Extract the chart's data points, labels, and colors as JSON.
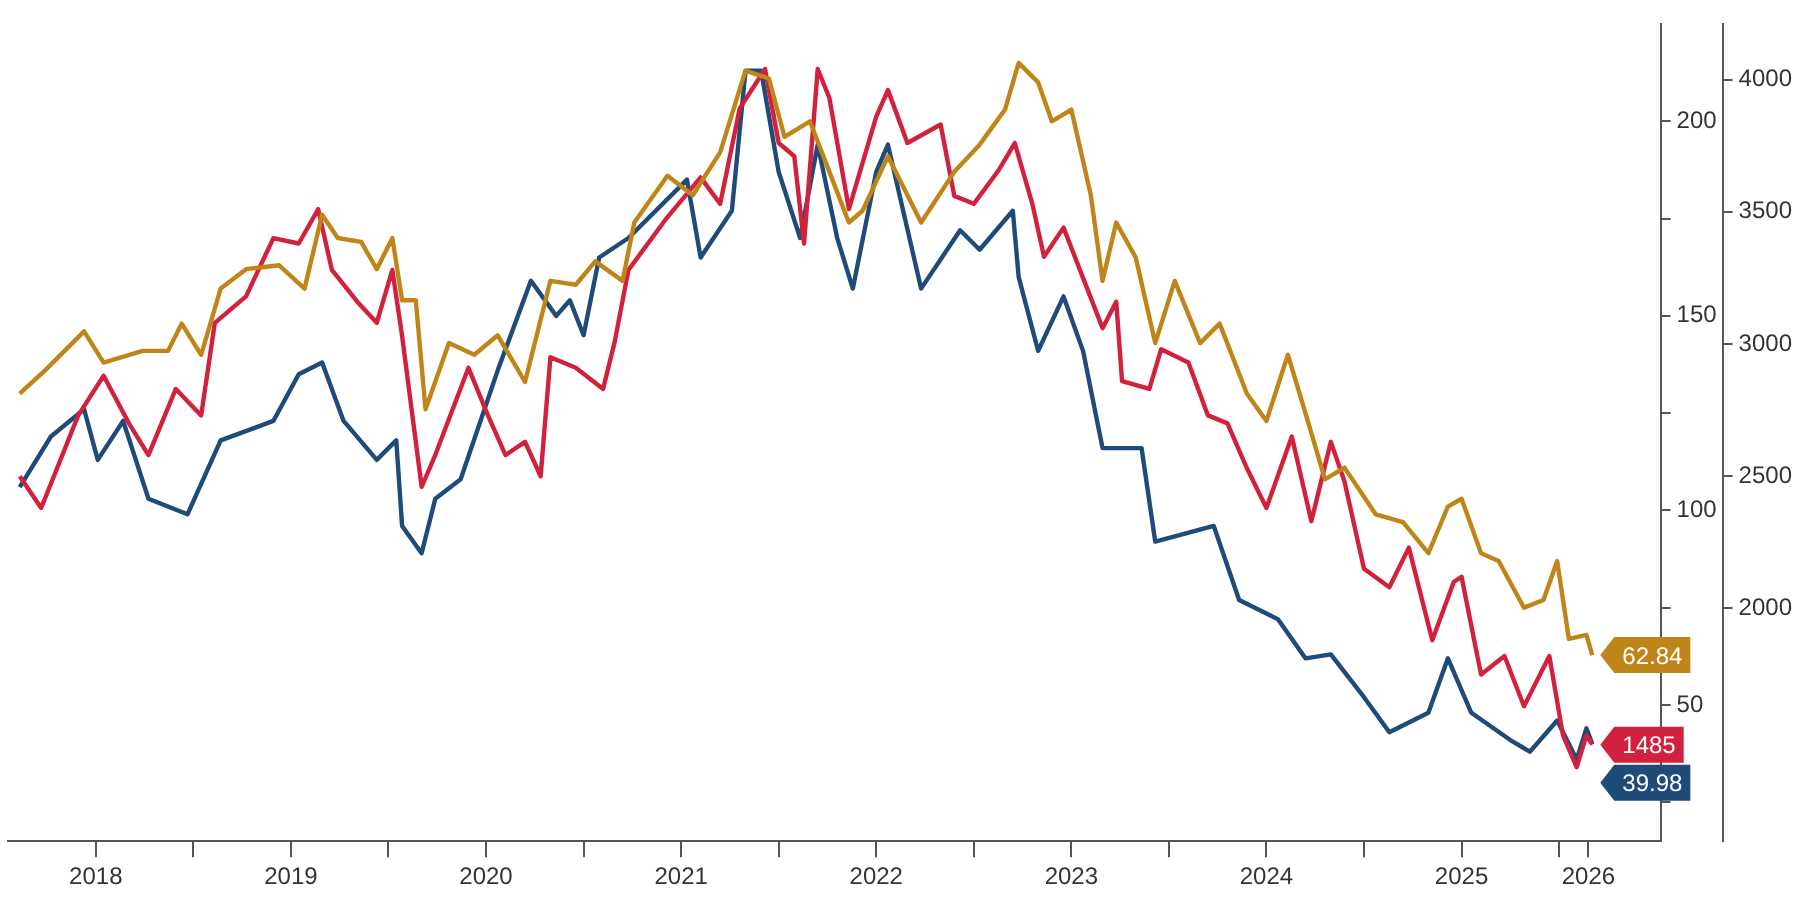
{
  "chart_data": {
    "type": "line",
    "xlim": [
      2018.05,
      2026.52
    ],
    "xticks": [
      {
        "value": 2018.5,
        "label": "2018"
      },
      {
        "value": 2019,
        "label": null
      },
      {
        "value": 2019.5,
        "label": "2019"
      },
      {
        "value": 2020,
        "label": null
      },
      {
        "value": 2020.5,
        "label": "2020"
      },
      {
        "value": 2021,
        "label": null
      },
      {
        "value": 2021.5,
        "label": "2021"
      },
      {
        "value": 2022,
        "label": null
      },
      {
        "value": 2022.5,
        "label": "2022"
      },
      {
        "value": 2023,
        "label": null
      },
      {
        "value": 2023.5,
        "label": "2023"
      },
      {
        "value": 2024,
        "label": null
      },
      {
        "value": 2024.5,
        "label": "2024"
      },
      {
        "value": 2025,
        "label": null
      },
      {
        "value": 2025.5,
        "label": "2025"
      },
      {
        "value": 2026,
        "label": null
      },
      {
        "value": 2026.15,
        "label": "2026"
      }
    ],
    "ylim": [
      15,
      225
    ],
    "yticks": [
      {
        "value": 25,
        "label": null
      },
      50,
      {
        "value": 75,
        "label": null
      },
      100,
      {
        "value": 125,
        "label": null
      },
      150,
      {
        "value": 175,
        "label": null
      },
      200
    ],
    "y2lim": [
      1120,
      4210
    ],
    "y2ticks": [
      2000,
      2500,
      3000,
      3500,
      4000
    ],
    "series": [
      {
        "color": "#c08519",
        "x": [
          2018.11,
          2018.24,
          2018.44,
          2018.54,
          2018.74,
          2018.87,
          2018.94,
          2019.04,
          2019.14,
          2019.27,
          2019.44,
          2019.57,
          2019.66,
          2019.74,
          2019.86,
          2019.94,
          2020.02,
          2020.07,
          2020.14,
          2020.19,
          2020.31,
          2020.44,
          2020.56,
          2020.7,
          2020.83,
          2020.96,
          2021.06,
          2021.2,
          2021.26,
          2021.43,
          2021.56,
          2021.7,
          2021.83,
          2021.95,
          2022.03,
          2022.16,
          2022.26,
          2022.36,
          2022.43,
          2022.56,
          2022.73,
          2022.9,
          2023.03,
          2023.16,
          2023.23,
          2023.33,
          2023.4,
          2023.5,
          2023.6,
          2023.66,
          2023.73,
          2023.83,
          2023.93,
          2024.03,
          2024.16,
          2024.26,
          2024.4,
          2024.5,
          2024.61,
          2024.7,
          2024.8,
          2024.9,
          2025.06,
          2025.2,
          2025.33,
          2025.43,
          2025.5,
          2025.6,
          2025.69,
          2025.82,
          2025.92,
          2025.99,
          2026.05,
          2026.14,
          2026.17
        ],
        "values": [
          130,
          136,
          146,
          138,
          141,
          141,
          148,
          140,
          157,
          162,
          163,
          157,
          176,
          170,
          169,
          162,
          170,
          154,
          154,
          126,
          143,
          140,
          145,
          133,
          159,
          158,
          164,
          159,
          174,
          186,
          181,
          192,
          213,
          211,
          196,
          200,
          187,
          174,
          177,
          191,
          174,
          187,
          194,
          203,
          215,
          210,
          200,
          203,
          181,
          159,
          174,
          165,
          143,
          159,
          143,
          148,
          130,
          123,
          140,
          125,
          108,
          111,
          99,
          97,
          89,
          101,
          103,
          89,
          87,
          75,
          77,
          87,
          67,
          68,
          62.84
        ],
        "value_labels": [
          null,
          null,
          null,
          null,
          null,
          null,
          null,
          null,
          null,
          null,
          null,
          null,
          null,
          null,
          null,
          null,
          null,
          null,
          null,
          null,
          null,
          null,
          null,
          null,
          null,
          null,
          null,
          null,
          null,
          null,
          null,
          null,
          null,
          null,
          null,
          null,
          null,
          null,
          null,
          null,
          null,
          null,
          null,
          null,
          null,
          null,
          null,
          null,
          null,
          null,
          null,
          null,
          null,
          null,
          null,
          null,
          null,
          null,
          null,
          null,
          null,
          null,
          null,
          null,
          null,
          null,
          null,
          null,
          null,
          null,
          null,
          null,
          null,
          null,
          "62.84"
        ]
      },
      {
        "color": "#d2213c",
        "axis": "y2",
        "x": [
          2018.11,
          2018.22,
          2018.41,
          2018.54,
          2018.67,
          2018.77,
          2018.91,
          2019.04,
          2019.11,
          2019.27,
          2019.41,
          2019.54,
          2019.64,
          2019.71,
          2019.84,
          2019.94,
          2020.02,
          2020.07,
          2020.17,
          2020.24,
          2020.41,
          2020.51,
          2020.6,
          2020.7,
          2020.78,
          2020.83,
          2020.96,
          2021.1,
          2021.16,
          2021.23,
          2021.43,
          2021.6,
          2021.7,
          2021.8,
          2021.93,
          2022.0,
          2022.08,
          2022.13,
          2022.2,
          2022.26,
          2022.36,
          2022.5,
          2022.56,
          2022.66,
          2022.83,
          2022.9,
          2023.0,
          2023.13,
          2023.21,
          2023.3,
          2023.36,
          2023.46,
          2023.56,
          2023.66,
          2023.73,
          2023.76,
          2023.9,
          2023.96,
          2024.1,
          2024.2,
          2024.3,
          2024.4,
          2024.5,
          2024.63,
          2024.73,
          2024.83,
          2024.9,
          2025.0,
          2025.13,
          2025.23,
          2025.35,
          2025.46,
          2025.5,
          2025.6,
          2025.72,
          2025.82,
          2025.95,
          2026.02,
          2026.09,
          2026.14,
          2026.17
        ],
        "values": [
          2500,
          2380,
          2730,
          2880,
          2700,
          2580,
          2830,
          2730,
          3080,
          3180,
          3400,
          3380,
          3510,
          3280,
          3160,
          3080,
          3280,
          3030,
          2460,
          2580,
          2910,
          2730,
          2580,
          2630,
          2500,
          2950,
          2910,
          2830,
          3010,
          3280,
          3480,
          3630,
          3530,
          3890,
          4040,
          3760,
          3710,
          3380,
          4040,
          3930,
          3510,
          3860,
          3960,
          3760,
          3830,
          3560,
          3530,
          3660,
          3760,
          3530,
          3330,
          3440,
          3250,
          3060,
          3160,
          2860,
          2830,
          2980,
          2930,
          2730,
          2700,
          2530,
          2380,
          2650,
          2330,
          2630,
          2480,
          2150,
          2080,
          2230,
          1880,
          2100,
          2120,
          1750,
          1820,
          1630,
          1820,
          1520,
          1400,
          1520,
          1485
        ],
        "value_labels": [
          null,
          null,
          null,
          null,
          null,
          null,
          null,
          null,
          null,
          null,
          null,
          null,
          null,
          null,
          null,
          null,
          null,
          null,
          null,
          null,
          null,
          null,
          null,
          null,
          null,
          null,
          null,
          null,
          null,
          null,
          null,
          null,
          null,
          null,
          null,
          null,
          null,
          null,
          null,
          null,
          null,
          null,
          null,
          null,
          null,
          null,
          null,
          null,
          null,
          null,
          null,
          null,
          null,
          null,
          null,
          null,
          null,
          null,
          null,
          null,
          null,
          null,
          null,
          null,
          null,
          null,
          null,
          null,
          null,
          null,
          null,
          null,
          null,
          null,
          null,
          null,
          null,
          null,
          null,
          null,
          "1485"
        ]
      },
      {
        "color": "#1f4b78",
        "x": [
          2018.11,
          2018.27,
          2018.44,
          2018.51,
          2018.64,
          2018.77,
          2018.97,
          2019.14,
          2019.41,
          2019.54,
          2019.66,
          2019.77,
          2019.94,
          2020.04,
          2020.07,
          2020.17,
          2020.24,
          2020.37,
          2020.56,
          2020.73,
          2020.86,
          2020.93,
          2021.0,
          2021.08,
          2021.23,
          2021.53,
          2021.6,
          2021.76,
          2021.83,
          2021.91,
          2022.0,
          2022.11,
          2022.2,
          2022.3,
          2022.38,
          2022.5,
          2022.56,
          2022.73,
          2022.93,
          2023.03,
          2023.2,
          2023.23,
          2023.33,
          2023.46,
          2023.56,
          2023.66,
          2023.86,
          2023.93,
          2024.23,
          2024.36,
          2024.56,
          2024.7,
          2024.83,
          2025.0,
          2025.13,
          2025.33,
          2025.43,
          2025.55,
          2025.75,
          2025.85,
          2025.99,
          2026.09,
          2026.14,
          2026.17
        ],
        "values": [
          106,
          119,
          126,
          113,
          123,
          103,
          99,
          118,
          123,
          135,
          138,
          123,
          113,
          118,
          96,
          89,
          103,
          108,
          136,
          159,
          150,
          154,
          145,
          165,
          170,
          185,
          165,
          177,
          213,
          213,
          187,
          170,
          194,
          170,
          157,
          187,
          194,
          157,
          172,
          167,
          177,
          160,
          141,
          155,
          141,
          116,
          116,
          92,
          96,
          77,
          72,
          62,
          63,
          52,
          43,
          48,
          62,
          48,
          41,
          38,
          46,
          36,
          44,
          39.98
        ],
        "value_labels": [
          null,
          null,
          null,
          null,
          null,
          null,
          null,
          null,
          null,
          null,
          null,
          null,
          null,
          null,
          null,
          null,
          null,
          null,
          null,
          null,
          null,
          null,
          null,
          null,
          null,
          null,
          null,
          null,
          null,
          null,
          null,
          null,
          null,
          null,
          null,
          null,
          null,
          null,
          null,
          null,
          null,
          null,
          null,
          null,
          null,
          null,
          null,
          null,
          null,
          null,
          null,
          null,
          null,
          null,
          null,
          null,
          null,
          null,
          null,
          null,
          null,
          null,
          null,
          "39.98"
        ]
      }
    ]
  }
}
